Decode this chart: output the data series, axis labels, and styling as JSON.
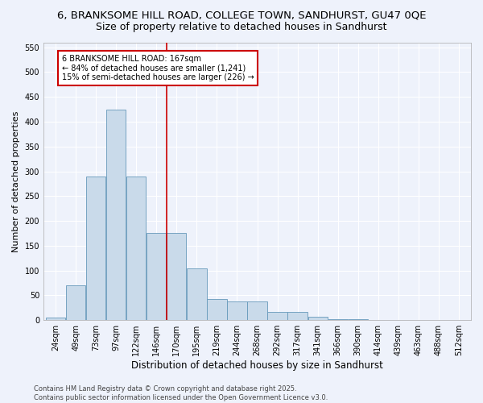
{
  "title1": "6, BRANKSOME HILL ROAD, COLLEGE TOWN, SANDHURST, GU47 0QE",
  "title2": "Size of property relative to detached houses in Sandhurst",
  "xlabel": "Distribution of detached houses by size in Sandhurst",
  "ylabel": "Number of detached properties",
  "bin_labels": [
    "24sqm",
    "49sqm",
    "73sqm",
    "97sqm",
    "122sqm",
    "146sqm",
    "170sqm",
    "195sqm",
    "219sqm",
    "244sqm",
    "268sqm",
    "292sqm",
    "317sqm",
    "341sqm",
    "366sqm",
    "390sqm",
    "414sqm",
    "439sqm",
    "463sqm",
    "488sqm",
    "512sqm"
  ],
  "bar_values": [
    5,
    70,
    290,
    425,
    290,
    175,
    175,
    105,
    42,
    38,
    38,
    17,
    17,
    7,
    2,
    2,
    1,
    0,
    0,
    0,
    0
  ],
  "bar_color": "#c9daea",
  "bar_edge_color": "#6699bb",
  "vline_color": "#cc0000",
  "annotation_text": "6 BRANKSOME HILL ROAD: 167sqm\n← 84% of detached houses are smaller (1,241)\n15% of semi-detached houses are larger (226) →",
  "annotation_box_color": "#ffffff",
  "annotation_box_edge": "#cc0000",
  "ylim": [
    0,
    560
  ],
  "yticks": [
    0,
    50,
    100,
    150,
    200,
    250,
    300,
    350,
    400,
    450,
    500,
    550
  ],
  "background_color": "#eef2fb",
  "footer": "Contains HM Land Registry data © Crown copyright and database right 2025.\nContains public sector information licensed under the Open Government Licence v3.0.",
  "title1_fontsize": 9.5,
  "title2_fontsize": 9,
  "tick_fontsize": 7,
  "xlabel_fontsize": 8.5,
  "ylabel_fontsize": 8,
  "footer_fontsize": 6,
  "vline_x_index": 6
}
